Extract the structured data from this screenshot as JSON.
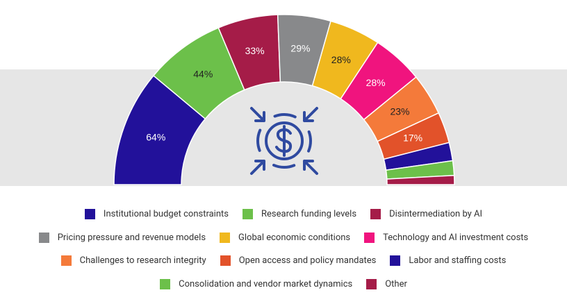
{
  "chart_data": {
    "type": "donut",
    "categories": [
      "Institutional budget constraints",
      "Research funding levels",
      "Disintermediation by AI",
      "Pricing pressure and revenue models",
      "Global economic conditions",
      "Technology and AI investment costs",
      "Challenges to research integrity",
      "Open access and policy mandates",
      "Labor and staffing costs",
      "Consolidation and vendor market dynamics",
      "Other"
    ],
    "values": [
      64,
      44,
      33,
      29,
      28,
      28,
      23,
      17,
      10,
      8,
      5
    ],
    "value_labels": [
      "64%",
      "44%",
      "33%",
      "29%",
      "28%",
      "28%",
      "23%",
      "17%",
      null,
      null,
      null
    ],
    "colors": [
      "#22119a",
      "#6cc04a",
      "#a51c48",
      "#88898b",
      "#f0b81e",
      "#f0147e",
      "#f47a3a",
      "#e2522a",
      "#22119a",
      "#6cc04a",
      "#a51c48"
    ],
    "legend_rows": [
      [
        0,
        1,
        2
      ],
      [
        3,
        4,
        5
      ],
      [
        6,
        7,
        8
      ],
      [
        9,
        10
      ]
    ]
  }
}
